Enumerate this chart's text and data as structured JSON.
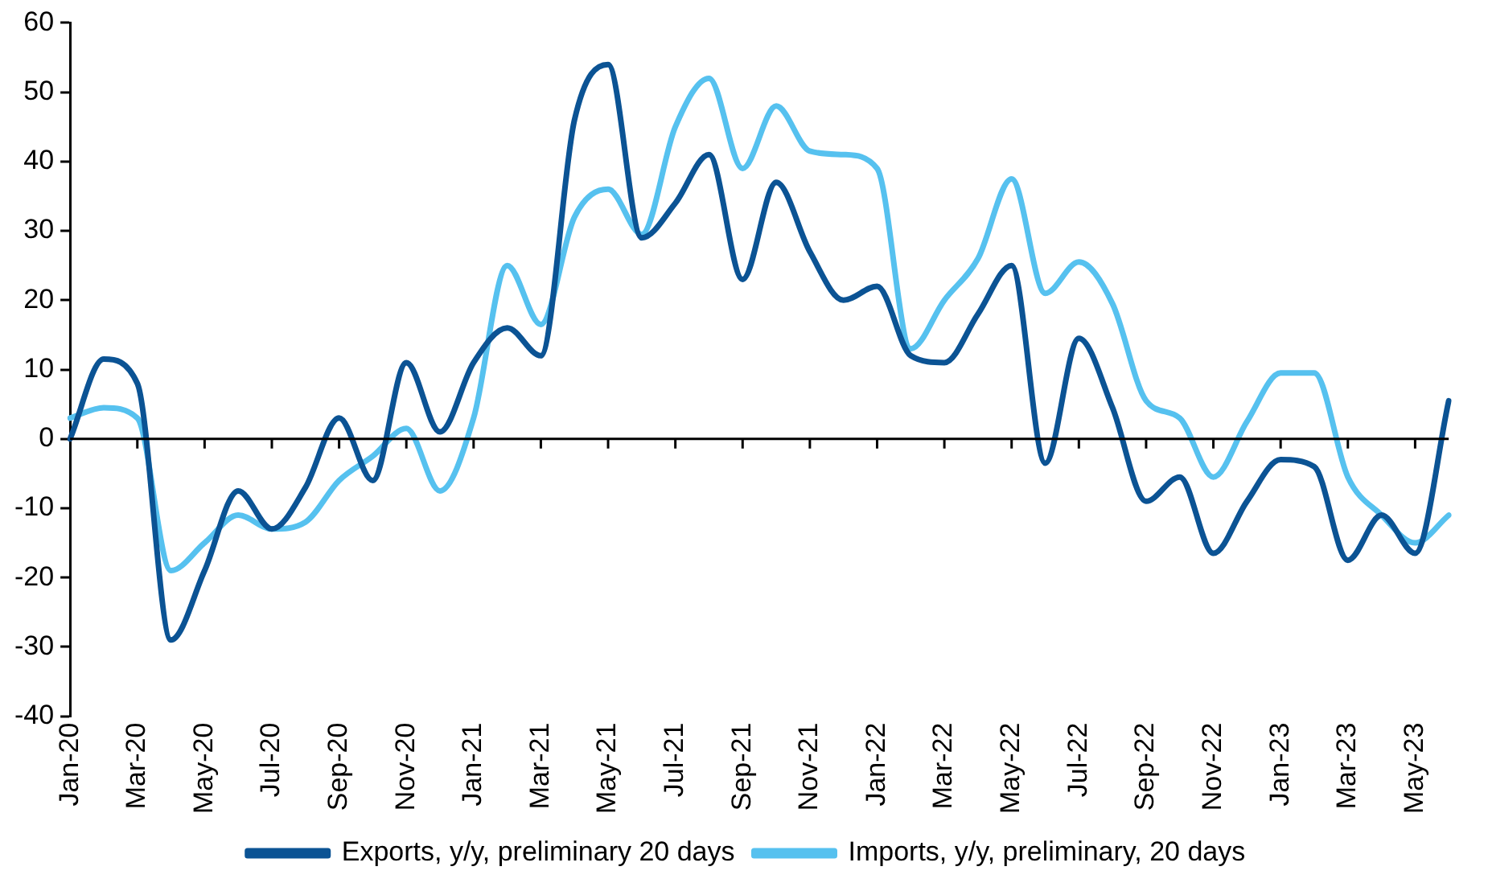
{
  "chart_data": {
    "type": "line",
    "categories": [
      "Jan-20",
      null,
      "Mar-20",
      null,
      "May-20",
      null,
      "Jul-20",
      null,
      "Sep-20",
      null,
      "Nov-20",
      null,
      "Jan-21",
      null,
      "Mar-21",
      null,
      "May-21",
      null,
      "Jul-21",
      null,
      "Sep-21",
      null,
      "Nov-21",
      null,
      "Jan-22",
      null,
      "Mar-22",
      null,
      "May-22",
      null,
      "Jul-22",
      null,
      "Sep-22",
      null,
      "Nov-22",
      null,
      "Jan-23",
      null,
      "Mar-23",
      null,
      "May-23",
      null
    ],
    "series": [
      {
        "name": "Exports, y/y, preliminary 20 days",
        "color": "#0b5394",
        "values": [
          0,
          11.5,
          8,
          -29,
          -19,
          -7.5,
          -13,
          -7,
          3,
          -6,
          11,
          1,
          11,
          16,
          12,
          46,
          54,
          29,
          34,
          41,
          23,
          37,
          27,
          20,
          22,
          12,
          11,
          18,
          25,
          -3.5,
          14.5,
          4.5,
          -9,
          -5.5,
          -16.5,
          -9,
          -3,
          -4,
          -17.5,
          -11,
          -16.5,
          5.5
        ]
      },
      {
        "name": "Imports, y/y, preliminary, 20 days",
        "color": "#56c1ef",
        "values": [
          3,
          4.5,
          3,
          -19,
          -15,
          -11,
          -13,
          -12,
          -6,
          -2.5,
          1.5,
          -7.5,
          3,
          25,
          16.5,
          32,
          36,
          29.5,
          45,
          52,
          39,
          48,
          41.5,
          41,
          39,
          13,
          20,
          26,
          37.5,
          21,
          25.5,
          19.5,
          5.5,
          3,
          -5.5,
          2.5,
          9.5,
          9.5,
          -5.5,
          -11,
          -15,
          -11
        ]
      }
    ],
    "ylim": [
      -40,
      60
    ],
    "yticks": [
      -40,
      -30,
      -20,
      -10,
      0,
      10,
      20,
      30,
      40,
      50,
      60
    ],
    "legend": "bottom",
    "marker": "none",
    "line_style": "solid"
  }
}
